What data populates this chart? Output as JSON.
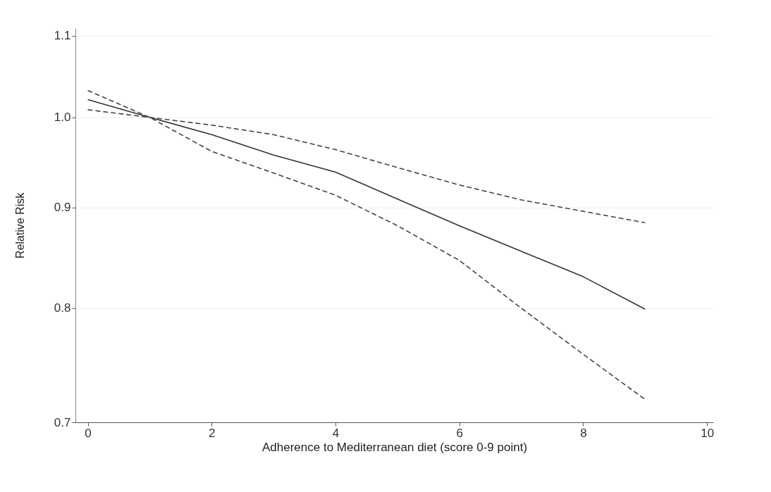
{
  "chart_data": {
    "type": "line",
    "xlabel": "Adherence to Mediterranean diet (score 0-9 point)",
    "ylabel": "Relative Risk",
    "x": [
      0,
      1,
      2,
      3,
      4,
      5,
      6,
      7,
      8,
      9
    ],
    "series": [
      {
        "color": "#333333",
        "line_style": "solid",
        "values": [
          1.021,
          1.0,
          0.98,
          0.957,
          0.938,
          0.909,
          0.881,
          0.855,
          0.83,
          0.799
        ]
      },
      {
        "color": "#444444",
        "line_style": "dashed",
        "values": [
          1.009,
          1.0,
          0.991,
          0.98,
          0.963,
          0.943,
          0.924,
          0.908,
          0.896,
          0.884
        ]
      },
      {
        "color": "#444444",
        "line_style": "dashed",
        "values": [
          1.032,
          1.0,
          0.961,
          0.937,
          0.913,
          0.881,
          0.846,
          0.8,
          0.758,
          0.719
        ]
      }
    ],
    "xlim": [
      -0.2,
      10.1
    ],
    "xticks": [
      0,
      2,
      4,
      6,
      8,
      10
    ],
    "ylim": [
      0.7,
      1.11
    ],
    "yticks": [
      0.7,
      0.8,
      0.9,
      {
        "value": 1,
        "label": "1.0"
      },
      1.1
    ],
    "log": "y",
    "grid": "y",
    "legend": false,
    "marker": "none"
  }
}
